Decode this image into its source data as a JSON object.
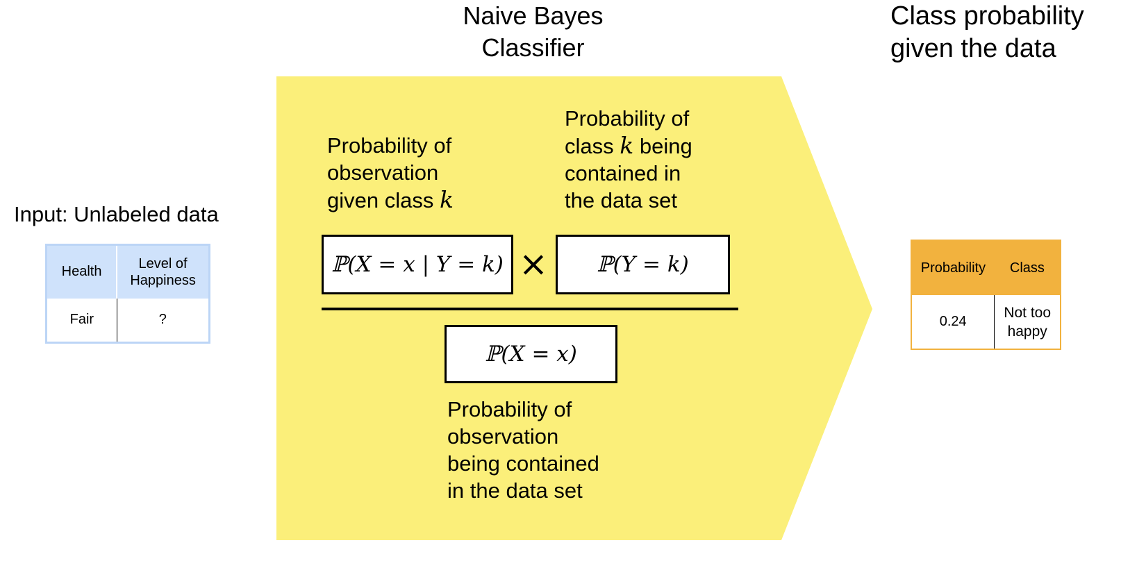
{
  "input": {
    "title": "Input: Unlabeled data",
    "headers": [
      "Health",
      "Level of Happiness"
    ],
    "row": [
      "Fair",
      "?"
    ],
    "header_color": "#cfe2fb",
    "border_color": "#bcd5f6"
  },
  "classifier": {
    "title_line1": "Naive Bayes",
    "title_line2": "Classifier",
    "fill_color": "#fbef7a",
    "likelihood_label": [
      "Probability of",
      "observation",
      "given class"
    ],
    "prior_label": [
      "Probability of",
      "class",
      "being",
      "contained in",
      "the data set"
    ],
    "evidence_label": [
      "Probability of",
      "observation",
      "being contained",
      "in the data set"
    ],
    "k_symbol": "k",
    "likelihood_formula": "ℙ(X = x | Y = k)",
    "prior_formula": "ℙ(Y = k)",
    "evidence_formula": "ℙ(X = x)",
    "times_symbol": "×"
  },
  "output": {
    "title_line1": "Class probability",
    "title_line2": "given the data",
    "headers": [
      "Probability",
      "Class"
    ],
    "row": [
      "0.24",
      "Not too happy"
    ],
    "header_color": "#f2b23e",
    "border_color": "#f2b23e"
  }
}
